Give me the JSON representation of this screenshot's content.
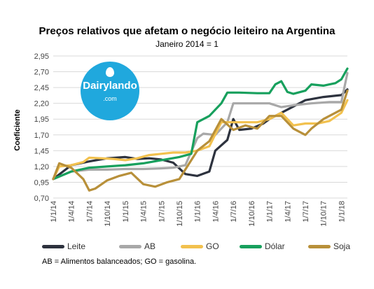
{
  "chart_data": {
    "type": "line",
    "title": "Preços relativos que afetam o negócio leiteiro na Argentina",
    "subtitle": "Janeiro 2014 = 1",
    "ylabel": "Coeficiente",
    "xlabel": "",
    "ylim": [
      0.7,
      2.95
    ],
    "y_ticks": [
      "2,95",
      "2,70",
      "2,45",
      "2,20",
      "1,95",
      "1,70",
      "1,45",
      "1,20",
      "0,95",
      "0,70"
    ],
    "x_ticks": [
      "1/1/14",
      "1/4/14",
      "1/7/14",
      "1/10/14",
      "1/1/15",
      "1/4/15",
      "1/7/15",
      "1/10/15",
      "1/1/16",
      "1/4/16",
      "1/7/16",
      "1/10/16",
      "1/1/17",
      "1/4/17",
      "1/7/17",
      "1/10/17",
      "1/1/18"
    ],
    "x_months": [
      0,
      3,
      6,
      9,
      12,
      15,
      18,
      21,
      24,
      27,
      30,
      33,
      36,
      39,
      42,
      45,
      48
    ],
    "grid": true,
    "legend_position": "bottom",
    "series": [
      {
        "name": "Leite",
        "color": "#2d323e",
        "points": [
          [
            0,
            1.0
          ],
          [
            3,
            1.22
          ],
          [
            6,
            1.28
          ],
          [
            9,
            1.33
          ],
          [
            12,
            1.35
          ],
          [
            14,
            1.32
          ],
          [
            16,
            1.33
          ],
          [
            18,
            1.31
          ],
          [
            20,
            1.26
          ],
          [
            22,
            1.08
          ],
          [
            24,
            1.05
          ],
          [
            26,
            1.12
          ],
          [
            27,
            1.45
          ],
          [
            29,
            1.62
          ],
          [
            30,
            1.95
          ],
          [
            31,
            1.78
          ],
          [
            33,
            1.8
          ],
          [
            35,
            1.88
          ],
          [
            36,
            1.95
          ],
          [
            38,
            2.05
          ],
          [
            40,
            2.15
          ],
          [
            42,
            2.25
          ],
          [
            45,
            2.3
          ],
          [
            48,
            2.33
          ],
          [
            49,
            2.42
          ]
        ]
      },
      {
        "name": "AB",
        "color": "#a8a8a8",
        "points": [
          [
            0,
            1.0
          ],
          [
            3,
            1.12
          ],
          [
            6,
            1.15
          ],
          [
            9,
            1.15
          ],
          [
            12,
            1.16
          ],
          [
            15,
            1.16
          ],
          [
            18,
            1.17
          ],
          [
            20,
            1.18
          ],
          [
            22,
            1.22
          ],
          [
            24,
            1.65
          ],
          [
            25,
            1.72
          ],
          [
            27,
            1.7
          ],
          [
            29,
            1.9
          ],
          [
            30,
            2.2
          ],
          [
            34,
            2.2
          ],
          [
            36,
            2.2
          ],
          [
            38,
            2.14
          ],
          [
            40,
            2.17
          ],
          [
            43,
            2.2
          ],
          [
            46,
            2.22
          ],
          [
            48,
            2.22
          ],
          [
            49,
            2.68
          ]
        ]
      },
      {
        "name": "GO",
        "color": "#f2c14e",
        "points": [
          [
            0,
            1.0
          ],
          [
            1,
            1.2
          ],
          [
            3,
            1.22
          ],
          [
            5,
            1.27
          ],
          [
            6,
            1.34
          ],
          [
            8,
            1.33
          ],
          [
            10,
            1.32
          ],
          [
            12,
            1.3
          ],
          [
            14,
            1.33
          ],
          [
            16,
            1.38
          ],
          [
            18,
            1.4
          ],
          [
            20,
            1.42
          ],
          [
            22,
            1.42
          ],
          [
            24,
            1.45
          ],
          [
            26,
            1.52
          ],
          [
            28,
            1.9
          ],
          [
            30,
            1.9
          ],
          [
            32,
            1.9
          ],
          [
            34,
            1.9
          ],
          [
            36,
            1.95
          ],
          [
            38,
            2.05
          ],
          [
            40,
            1.85
          ],
          [
            42,
            1.88
          ],
          [
            44,
            1.88
          ],
          [
            46,
            1.92
          ],
          [
            48,
            2.05
          ],
          [
            49,
            2.25
          ]
        ]
      },
      {
        "name": "Dólar",
        "color": "#17a05d",
        "points": [
          [
            0,
            1.0
          ],
          [
            3,
            1.12
          ],
          [
            6,
            1.18
          ],
          [
            9,
            1.2
          ],
          [
            12,
            1.22
          ],
          [
            15,
            1.25
          ],
          [
            18,
            1.3
          ],
          [
            21,
            1.35
          ],
          [
            23,
            1.4
          ],
          [
            24,
            1.9
          ],
          [
            26,
            2.0
          ],
          [
            28,
            2.2
          ],
          [
            29,
            2.37
          ],
          [
            31,
            2.37
          ],
          [
            34,
            2.36
          ],
          [
            36,
            2.36
          ],
          [
            37,
            2.5
          ],
          [
            38,
            2.55
          ],
          [
            39,
            2.38
          ],
          [
            40,
            2.35
          ],
          [
            42,
            2.4
          ],
          [
            43,
            2.5
          ],
          [
            45,
            2.48
          ],
          [
            47,
            2.52
          ],
          [
            48,
            2.58
          ],
          [
            49,
            2.75
          ]
        ]
      },
      {
        "name": "Soja",
        "color": "#b8903a",
        "points": [
          [
            0,
            1.0
          ],
          [
            1,
            1.25
          ],
          [
            3,
            1.18
          ],
          [
            5,
            1.0
          ],
          [
            6,
            0.82
          ],
          [
            7,
            0.85
          ],
          [
            9,
            0.98
          ],
          [
            11,
            1.05
          ],
          [
            13,
            1.1
          ],
          [
            15,
            0.92
          ],
          [
            17,
            0.88
          ],
          [
            19,
            0.95
          ],
          [
            21,
            1.0
          ],
          [
            23,
            1.3
          ],
          [
            24,
            1.45
          ],
          [
            26,
            1.6
          ],
          [
            28,
            1.95
          ],
          [
            30,
            1.78
          ],
          [
            32,
            1.85
          ],
          [
            34,
            1.8
          ],
          [
            36,
            2.0
          ],
          [
            38,
            2.0
          ],
          [
            40,
            1.8
          ],
          [
            41,
            1.75
          ],
          [
            42,
            1.7
          ],
          [
            43,
            1.8
          ],
          [
            45,
            1.95
          ],
          [
            47,
            2.05
          ],
          [
            48,
            2.1
          ],
          [
            49,
            2.4
          ]
        ]
      }
    ]
  },
  "logo": {
    "word": "Dairylando",
    "sub": ".com"
  },
  "legend": {
    "items": [
      {
        "label": "Leite",
        "color": "#2d323e"
      },
      {
        "label": "AB",
        "color": "#a8a8a8"
      },
      {
        "label": "GO",
        "color": "#f2c14e"
      },
      {
        "label": "Dólar",
        "color": "#17a05d"
      },
      {
        "label": "Soja",
        "color": "#b8903a"
      }
    ]
  },
  "footnote": "AB = Alimentos balanceados; GO = gasolina."
}
